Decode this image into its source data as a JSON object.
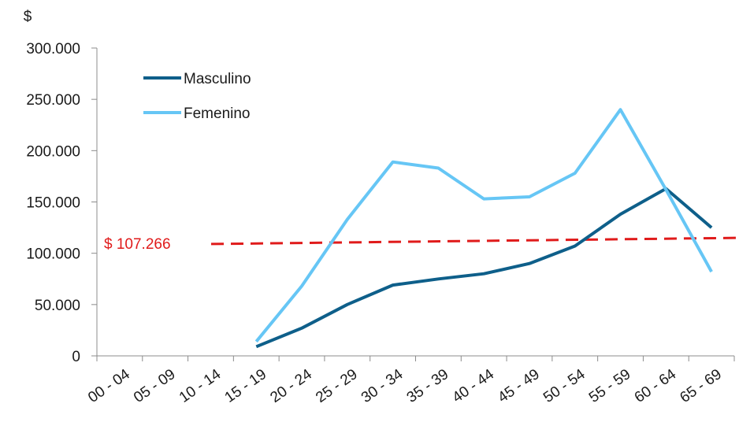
{
  "chart_data": {
    "type": "line",
    "ylabel": "$",
    "xlabel": "",
    "ylim": [
      0,
      300000
    ],
    "yticks": [
      0,
      50000,
      100000,
      150000,
      200000,
      250000,
      300000
    ],
    "ytick_labels": [
      "0",
      "50.000",
      "100.000",
      "150.000",
      "200.000",
      "250.000",
      "300.000"
    ],
    "categories": [
      "00 - 04",
      "05 - 09",
      "10 - 14",
      "15 - 19",
      "20 - 24",
      "25 - 29",
      "30 - 34",
      "35 - 39",
      "40 - 44",
      "45 - 49",
      "50 - 54",
      "55 - 59",
      "60 - 64",
      "65 - 69"
    ],
    "series": [
      {
        "name": "Masculino",
        "color": "#0e5f8a",
        "values": [
          null,
          null,
          null,
          9000,
          27000,
          50000,
          69000,
          75000,
          80000,
          90000,
          107000,
          138000,
          163000,
          125000
        ]
      },
      {
        "name": "Femenino",
        "color": "#66c6f5",
        "values": [
          null,
          null,
          null,
          14000,
          68000,
          133000,
          189000,
          183000,
          153000,
          155000,
          178000,
          240000,
          162000,
          82000
        ]
      }
    ],
    "reference_line": {
      "label": "$ 107.266",
      "color": "#e01b1b",
      "start_value": 109000,
      "end_value": 115000
    },
    "legend_position": "top-left",
    "grid": false
  }
}
